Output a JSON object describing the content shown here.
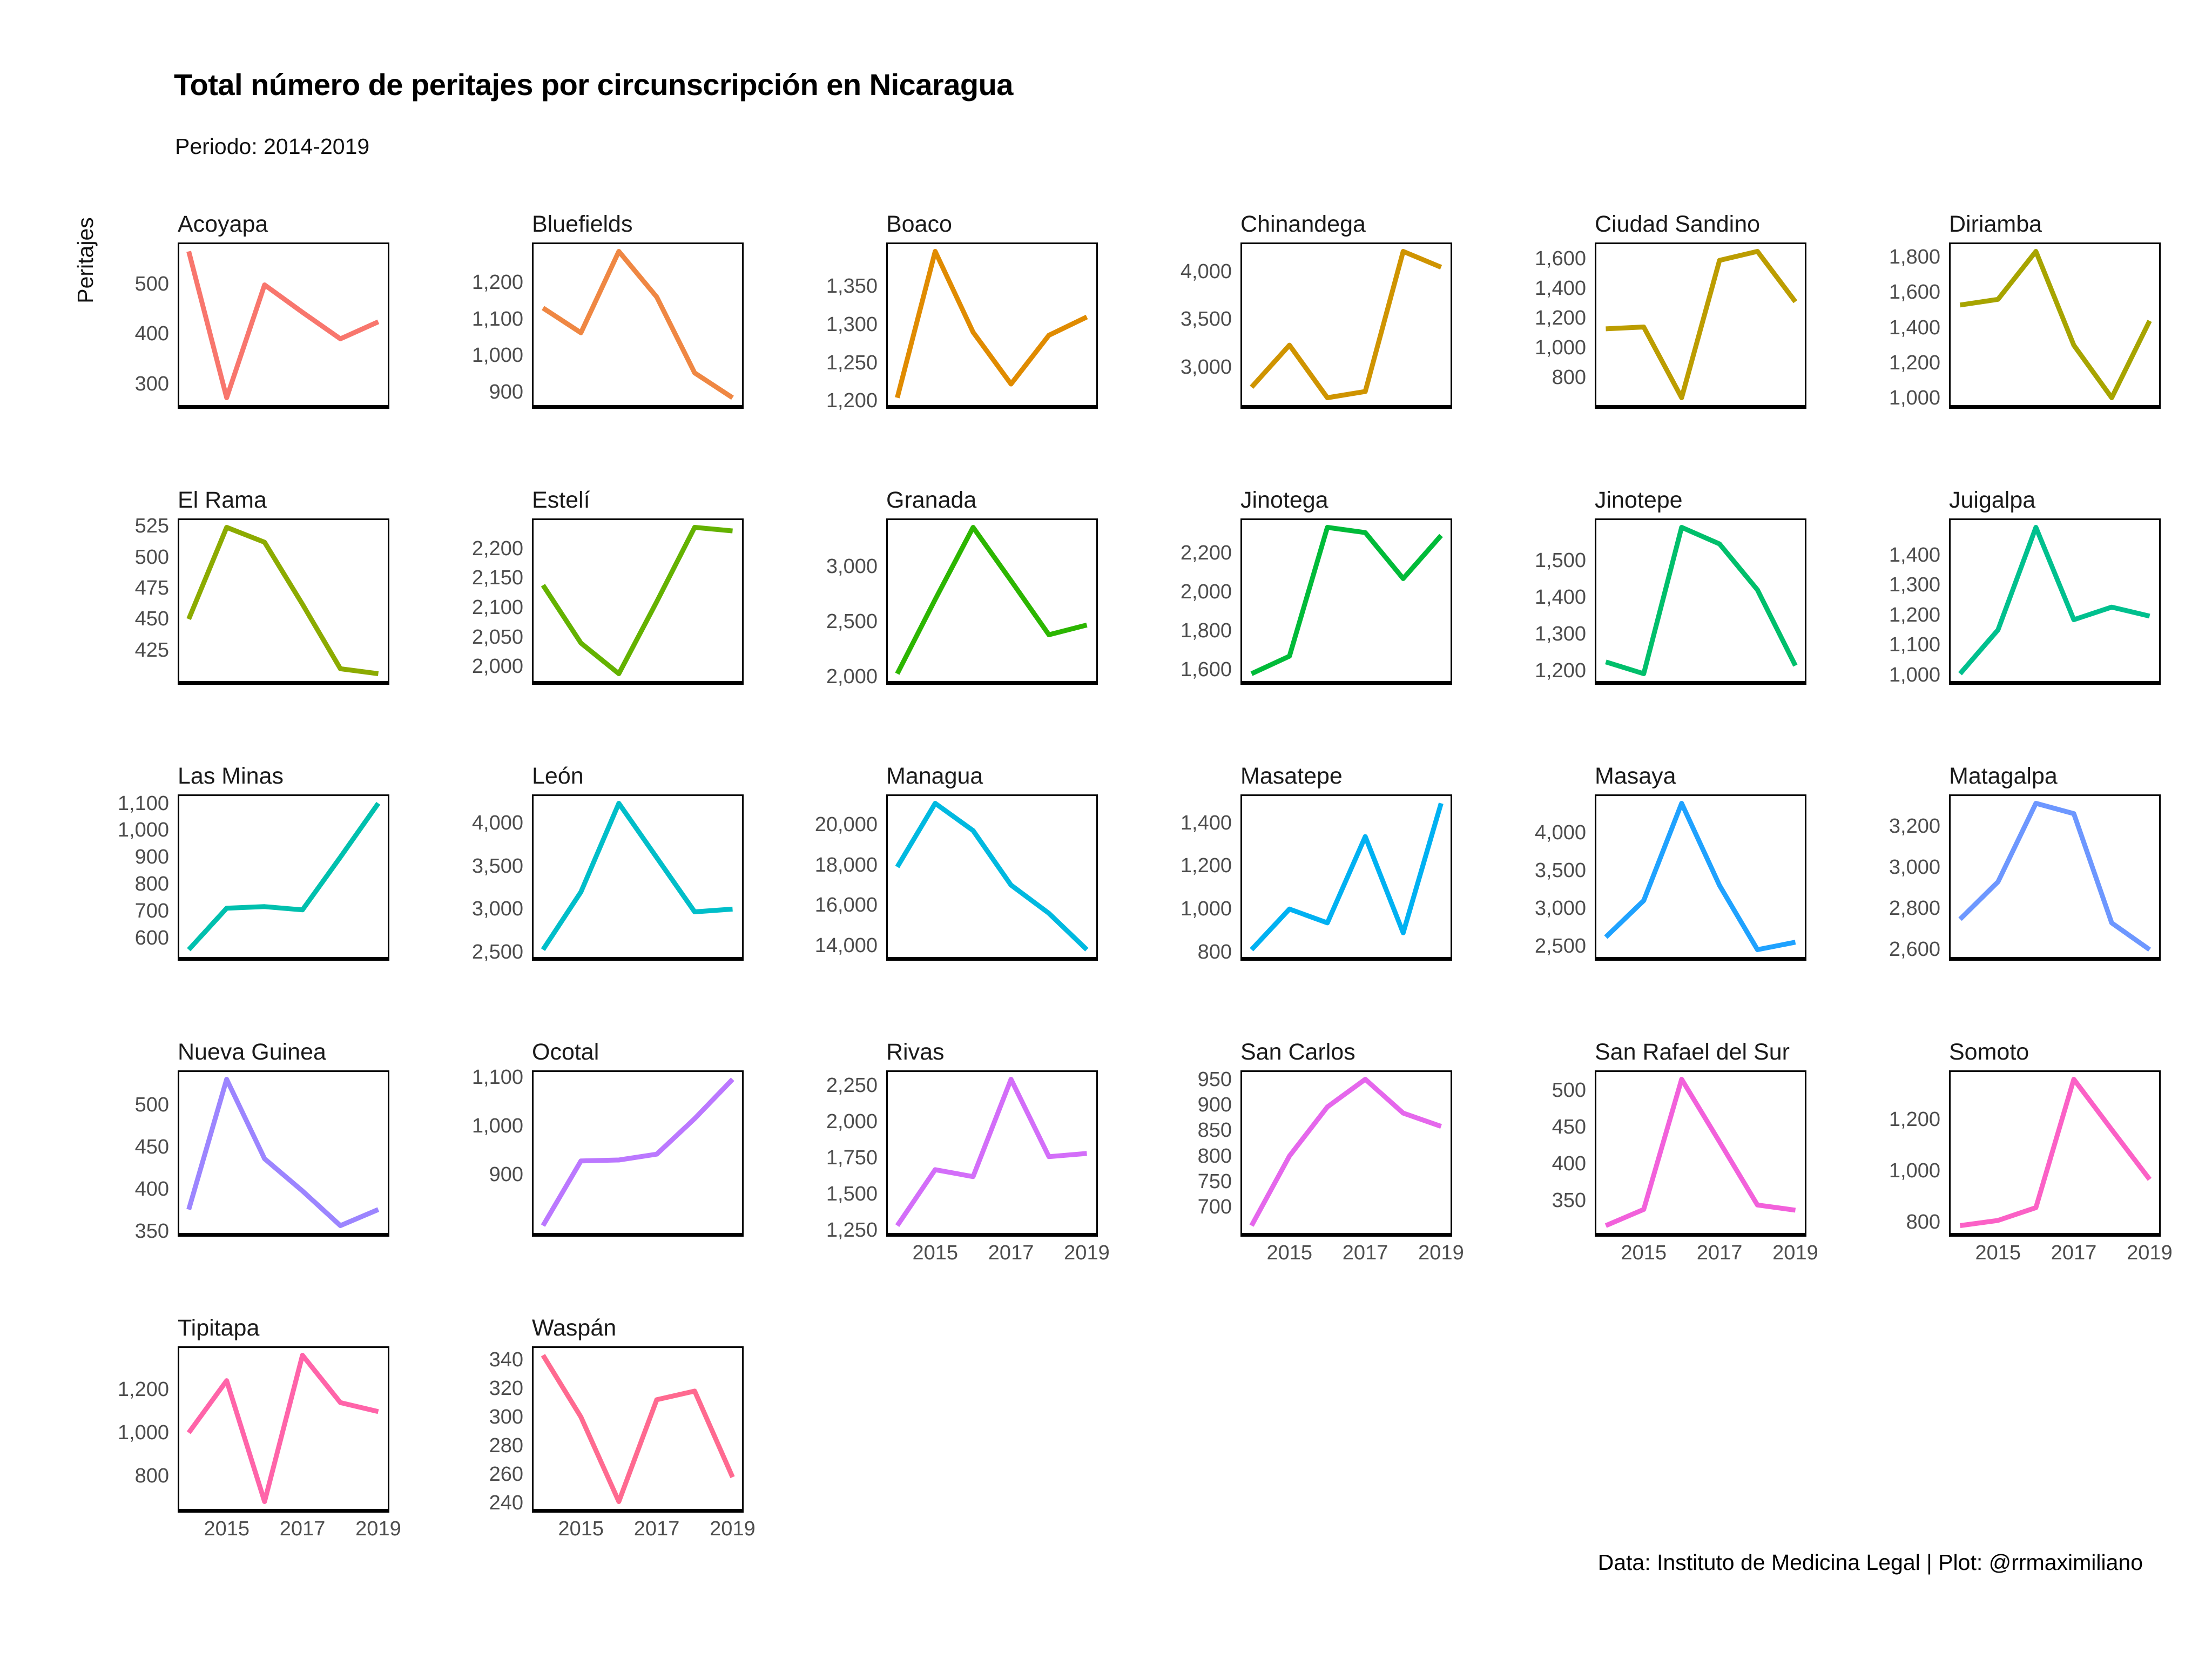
{
  "header": {
    "title": "Total número de peritajes por circunscripción en Nicaragua",
    "subtitle": "Periodo: 2014-2019"
  },
  "y_axis_label": "Peritajes",
  "footer_text": "Data: Instituto de Medicina Legal | Plot: @rrmaximiliano",
  "chart_data": {
    "type": "line",
    "title": "Total número de peritajes por circunscripción en Nicaragua",
    "subtitle": "Periodo: 2014-2019",
    "ylabel": "Peritajes",
    "x": [
      2014,
      2015,
      2016,
      2017,
      2018,
      2019
    ],
    "x_ticks_shown": [
      2015,
      2017,
      2019
    ],
    "grid": false,
    "legend": "none",
    "layout": "facet-wrap, 6 columns, free y scales",
    "facets": [
      {
        "name": "Acoyapa",
        "color": "#F8766D",
        "values": [
          565,
          272,
          498,
          443,
          390,
          424
        ],
        "yticks": [
          300,
          400,
          500
        ],
        "x_axis": false
      },
      {
        "name": "Bluefields",
        "color": "#EF8743",
        "values": [
          1130,
          1062,
          1285,
          1160,
          952,
          884
        ],
        "yticks": [
          900,
          1000,
          1100,
          1200
        ],
        "x_axis": false
      },
      {
        "name": "Boaco",
        "color": "#E08B00",
        "values": [
          1204,
          1396,
          1290,
          1222,
          1286,
          1310
        ],
        "yticks": [
          1200,
          1250,
          1300,
          1350
        ],
        "x_axis": false
      },
      {
        "name": "Chinandega",
        "color": "#CF9400",
        "values": [
          2790,
          3230,
          2680,
          2745,
          4210,
          4045
        ],
        "yticks": [
          3000,
          3500,
          4000
        ],
        "x_axis": false
      },
      {
        "name": "Ciudad Sandino",
        "color": "#BC9D00",
        "values": [
          1128,
          1140,
          665,
          1588,
          1648,
          1310
        ],
        "yticks": [
          800,
          1000,
          1200,
          1400,
          1600
        ],
        "x_axis": false
      },
      {
        "name": "Diriamba",
        "color": "#A7A400",
        "values": [
          1528,
          1560,
          1832,
          1300,
          1002,
          1438
        ],
        "yticks": [
          1000,
          1200,
          1400,
          1600,
          1800
        ],
        "x_axis": false
      },
      {
        "name": "El Rama",
        "color": "#8CAB00",
        "values": [
          450,
          524,
          512,
          462,
          410,
          406
        ],
        "yticks": [
          425,
          450,
          475,
          500,
          525
        ],
        "x_axis": false
      },
      {
        "name": "Estelí",
        "color": "#64B200",
        "values": [
          2138,
          2040,
          1988,
          2110,
          2236,
          2230
        ],
        "yticks": [
          2000,
          2050,
          2100,
          2150,
          2200
        ],
        "x_axis": false
      },
      {
        "name": "Granada",
        "color": "#2CB600",
        "values": [
          2028,
          2700,
          3352,
          2870,
          2380,
          2468
        ],
        "yticks": [
          2000,
          2500,
          3000
        ],
        "x_axis": false
      },
      {
        "name": "Jinotega",
        "color": "#00BB39",
        "values": [
          1578,
          1668,
          2332,
          2305,
          2068,
          2290
        ],
        "yticks": [
          1600,
          1800,
          2000,
          2200
        ],
        "x_axis": false
      },
      {
        "name": "Jinotepe",
        "color": "#00BF6B",
        "values": [
          1224,
          1192,
          1590,
          1545,
          1420,
          1214
        ],
        "yticks": [
          1200,
          1300,
          1400,
          1500
        ],
        "x_axis": false
      },
      {
        "name": "Juigalpa",
        "color": "#00C08E",
        "values": [
          1004,
          1150,
          1492,
          1184,
          1226,
          1196
        ],
        "yticks": [
          1000,
          1100,
          1200,
          1300,
          1400
        ],
        "x_axis": false
      },
      {
        "name": "Las Minas",
        "color": "#00C0AE",
        "values": [
          556,
          710,
          716,
          704,
          900,
          1100
        ],
        "yticks": [
          600,
          700,
          800,
          900,
          1000,
          1100
        ],
        "x_axis": false
      },
      {
        "name": "León",
        "color": "#00BEC9",
        "values": [
          2528,
          3200,
          4232,
          3600,
          2968,
          3000
        ],
        "yticks": [
          2500,
          3000,
          3500,
          4000
        ],
        "x_axis": false
      },
      {
        "name": "Managua",
        "color": "#00B9E0",
        "values": [
          17900,
          21050,
          19700,
          17000,
          15600,
          13800
        ],
        "yticks": [
          14000,
          16000,
          18000,
          20000
        ],
        "x_axis": false
      },
      {
        "name": "Masatepe",
        "color": "#00B1F2",
        "values": [
          812,
          1000,
          936,
          1336,
          890,
          1490
        ],
        "yticks": [
          800,
          1000,
          1200,
          1400
        ],
        "x_axis": false
      },
      {
        "name": "Masaya",
        "color": "#1FA2FF",
        "values": [
          2618,
          3100,
          4385,
          3300,
          2452,
          2550
        ],
        "yticks": [
          2500,
          3000,
          3500,
          4000
        ],
        "x_axis": false
      },
      {
        "name": "Matagalpa",
        "color": "#6D97FF",
        "values": [
          2748,
          2930,
          3312,
          3262,
          2730,
          2600
        ],
        "yticks": [
          2600,
          2800,
          3000,
          3200
        ],
        "x_axis": false
      },
      {
        "name": "Nueva Guinea",
        "color": "#9C85FF",
        "values": [
          376,
          530,
          436,
          398,
          357,
          376
        ],
        "yticks": [
          350,
          400,
          450,
          500
        ],
        "x_axis": false
      },
      {
        "name": "Ocotal",
        "color": "#BB78FF",
        "values": [
          795,
          928,
          930,
          942,
          1015,
          1096
        ],
        "yticks": [
          900,
          1000,
          1100
        ],
        "x_axis": false
      },
      {
        "name": "Rivas",
        "color": "#D36EF9",
        "values": [
          1282,
          1668,
          1620,
          2292,
          1758,
          1780
        ],
        "yticks": [
          1250,
          1500,
          1750,
          2000,
          2250
        ],
        "x_axis": true
      },
      {
        "name": "San Carlos",
        "color": "#E567EC",
        "values": [
          664,
          800,
          896,
          950,
          884,
          858
        ],
        "yticks": [
          700,
          750,
          800,
          850,
          900,
          950
        ],
        "x_axis": true
      },
      {
        "name": "San Rafael del Sur",
        "color": "#F261DB",
        "values": [
          316,
          338,
          515,
          430,
          344,
          337
        ],
        "yticks": [
          350,
          400,
          450,
          500
        ],
        "x_axis": true
      },
      {
        "name": "Somoto",
        "color": "#FB61C6",
        "values": [
          786,
          806,
          856,
          1356,
          1160,
          966
        ],
        "yticks": [
          800,
          1000,
          1200
        ],
        "x_axis": true
      },
      {
        "name": "Tipitapa",
        "color": "#FF64A9",
        "values": [
          1000,
          1242,
          680,
          1360,
          1140,
          1098
        ],
        "yticks": [
          800,
          1000,
          1200
        ],
        "x_axis": true
      },
      {
        "name": "Waspán",
        "color": "#FF6A90",
        "values": [
          343,
          300,
          241,
          312,
          318,
          258
        ],
        "yticks": [
          240,
          260,
          280,
          300,
          320,
          340
        ],
        "x_axis": true
      }
    ]
  }
}
